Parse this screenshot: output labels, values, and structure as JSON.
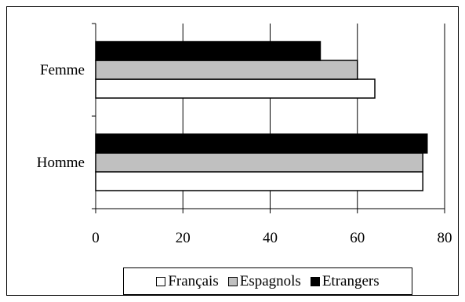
{
  "chart_data": {
    "type": "bar",
    "orientation": "horizontal",
    "categories": [
      "Femme",
      "Homme"
    ],
    "series": [
      {
        "name": "Français",
        "values": [
          64,
          75
        ],
        "color": "#ffffff"
      },
      {
        "name": "Espagnols",
        "values": [
          60,
          75
        ],
        "color": "#c0c0c0"
      },
      {
        "name": "Etrangers",
        "values": [
          51.5,
          76
        ],
        "color": "#000000"
      }
    ],
    "xlim": [
      0,
      80
    ],
    "xticks": [
      "0",
      "20",
      "40",
      "60",
      "80"
    ],
    "grid": "vertical",
    "legend_position": "bottom",
    "title": "",
    "xlabel": "",
    "ylabel": ""
  }
}
